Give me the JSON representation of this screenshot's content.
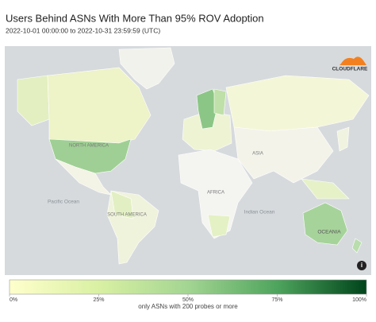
{
  "header": {
    "title": "Users Behind ASNs With More Than 95% ROV Adoption",
    "subtitle": "2022-10-01 00:00:00 to 2022-10-31 23:59:59 (UTC)"
  },
  "map": {
    "labels": [
      "NORTH AMERICA",
      "SOUTH AMERICA",
      "AFRICA",
      "ASIA",
      "OCEANIA",
      "Pacific Ocean",
      "Indian Ocean"
    ],
    "logo": "CLOUDFLARE"
  },
  "legend": {
    "lim": [
      0,
      100
    ],
    "ticks": [
      {
        "value": 0,
        "label": "0%"
      },
      {
        "value": 25,
        "label": "25%"
      },
      {
        "value": 50,
        "label": "50%"
      },
      {
        "value": 75,
        "label": "75%"
      },
      {
        "value": 100,
        "label": "100%"
      }
    ],
    "note": "only ASNs with 200 probes or more"
  }
}
